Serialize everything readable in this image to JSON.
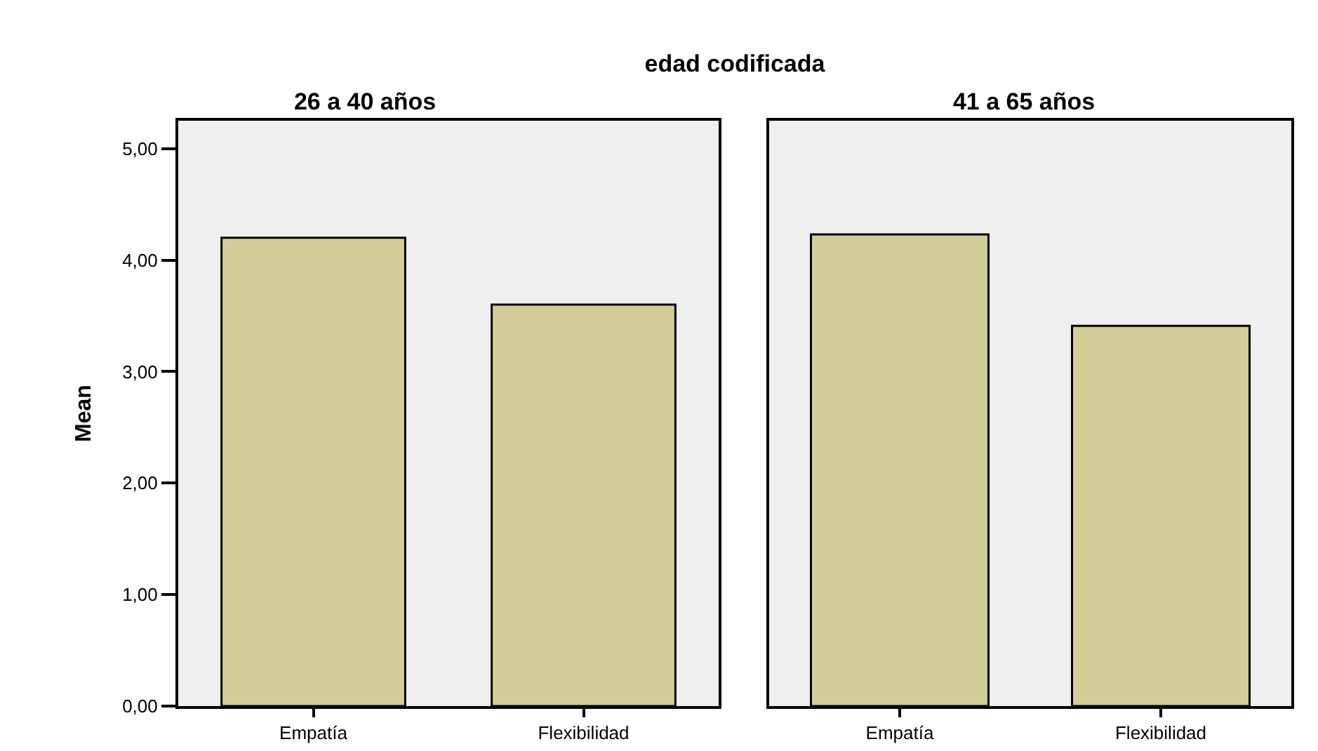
{
  "chart_data": [
    {
      "type": "bar",
      "title": "26 a 40 años",
      "annotations": [
        "edad codificada"
      ],
      "ylabel": "Mean",
      "categories": [
        "Empatía",
        "Flexibilidad"
      ],
      "values": [
        4.2,
        3.6
      ],
      "color": "#d3ce98",
      "ylim": [
        0,
        5.25
      ],
      "yticks": [
        {
          "value": 0,
          "label": "0,00"
        },
        {
          "value": 1,
          "label": "1,00"
        },
        {
          "value": 2,
          "label": "2,00"
        },
        {
          "value": 3,
          "label": "3,00"
        },
        {
          "value": 4,
          "label": "4,00"
        },
        {
          "value": 5,
          "label": "5,00"
        }
      ],
      "grid": false
    },
    {
      "type": "bar",
      "title": "41 a 65 años",
      "categories": [
        "Empatía",
        "Flexibilidad"
      ],
      "values": [
        4.23,
        3.41
      ],
      "color": "#d3ce98",
      "ylim": [
        0,
        5.25
      ],
      "grid": false,
      "tick_labels": "x"
    }
  ]
}
